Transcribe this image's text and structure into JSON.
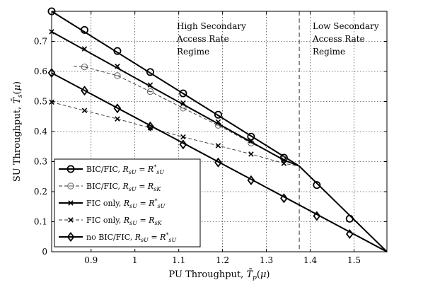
{
  "chart_data": {
    "type": "line",
    "xlabel": "PU Throughput, T̄p(μ)",
    "ylabel": "SU Throughput, T̄s(μ)",
    "xlim": [
      0.81,
      1.575
    ],
    "ylim": [
      0,
      0.8
    ],
    "grid": true,
    "x_ticks": [
      "0.9",
      "1",
      "1.1",
      "1.2",
      "1.3",
      "1.4",
      "1.5"
    ],
    "x_tick_values": [
      0.9,
      1.0,
      1.1,
      1.2,
      1.3,
      1.4,
      1.5
    ],
    "y_ticks": [
      "0",
      "0.1",
      "0.2",
      "0.3",
      "0.4",
      "0.5",
      "0.6",
      "0.7"
    ],
    "y_tick_values": [
      0,
      0.1,
      0.2,
      0.3,
      0.4,
      0.5,
      0.6,
      0.7
    ],
    "legend_position": "lower-left",
    "regime_divider_x": 1.375,
    "annotations": [
      {
        "lines": [
          "High Secondary",
          "Access Rate",
          "Regime"
        ]
      },
      {
        "lines": [
          "Low Secondary",
          "Access Rate",
          "Regime"
        ]
      }
    ],
    "series": [
      {
        "name": "BIC/FIC, RsU = R*sU",
        "marker": "circle",
        "line": "solid",
        "weight": "thick",
        "x": [
          0.81,
          1.375,
          1.575
        ],
        "y": [
          0.8,
          0.285,
          0.0
        ],
        "marker_x": [
          0.81,
          0.885,
          0.96,
          1.035,
          1.11,
          1.19,
          1.265,
          1.34,
          1.415,
          1.49
        ],
        "marker_y": [
          0.8,
          0.738,
          0.668,
          0.598,
          0.527,
          0.456,
          0.383,
          0.313,
          0.222,
          0.11
        ]
      },
      {
        "name": "BIC/FIC, RsU = RsK",
        "marker": "circle-dash",
        "line": "dashed",
        "weight": "thin",
        "x": [
          0.86,
          0.885,
          0.96,
          1.035,
          1.11,
          1.19,
          1.265,
          1.34
        ],
        "y": [
          0.618,
          0.615,
          0.586,
          0.533,
          0.478,
          0.421,
          0.362,
          0.308
        ],
        "marker_x": [
          0.885,
          0.96,
          1.035,
          1.11,
          1.19,
          1.265,
          1.34
        ],
        "marker_y": [
          0.615,
          0.586,
          0.533,
          0.478,
          0.421,
          0.362,
          0.308
        ]
      },
      {
        "name": "FIC only, RsU = R*sU",
        "marker": "x",
        "line": "solid",
        "weight": "thick",
        "x": [
          0.81,
          1.34,
          1.375
        ],
        "y": [
          0.732,
          0.305,
          0.285
        ],
        "marker_x": [
          0.81,
          0.885,
          0.96,
          1.035,
          1.11,
          1.19,
          1.265,
          1.34
        ],
        "marker_y": [
          0.732,
          0.675,
          0.617,
          0.555,
          0.495,
          0.432,
          0.37,
          0.305
        ]
      },
      {
        "name": "FIC only, RsU = RsK",
        "marker": "x",
        "line": "dashed",
        "weight": "thin",
        "x": [
          0.81,
          0.885,
          0.96,
          1.035,
          1.11,
          1.19,
          1.265,
          1.34,
          1.375
        ],
        "y": [
          0.498,
          0.47,
          0.442,
          0.412,
          0.382,
          0.353,
          0.325,
          0.294,
          0.285
        ],
        "marker_x": [
          0.81,
          0.885,
          0.96,
          1.035,
          1.11,
          1.19,
          1.265,
          1.34
        ],
        "marker_y": [
          0.498,
          0.47,
          0.442,
          0.412,
          0.382,
          0.353,
          0.325,
          0.294
        ]
      },
      {
        "name": "no BIC/FIC, RsU = R*sU",
        "marker": "diamond",
        "line": "solid",
        "weight": "thick",
        "x": [
          0.81,
          1.575
        ],
        "y": [
          0.595,
          0.0
        ],
        "marker_x": [
          0.81,
          0.885,
          0.96,
          1.035,
          1.11,
          1.19,
          1.265,
          1.34,
          1.415,
          1.49
        ],
        "marker_y": [
          0.595,
          0.536,
          0.477,
          0.417,
          0.357,
          0.297,
          0.238,
          0.178,
          0.119,
          0.059
        ]
      }
    ]
  },
  "legend": [
    {
      "prefix": "BIC/FIC, ",
      "sub_r": "sU",
      "rel": " = ",
      "rhs_sym": "R",
      "rhs_star": "*",
      "rhs_sub": "sU"
    },
    {
      "prefix": "BIC/FIC, ",
      "sub_r": "sU",
      "rel": " = ",
      "rhs_sym": "R",
      "rhs_star": "",
      "rhs_sub": "sK"
    },
    {
      "prefix": "FIC only, ",
      "sub_r": "sU",
      "rel": " = ",
      "rhs_sym": "R",
      "rhs_star": "*",
      "rhs_sub": "sU"
    },
    {
      "prefix": "FIC only, ",
      "sub_r": "sU",
      "rel": " = ",
      "rhs_sym": "R",
      "rhs_star": "",
      "rhs_sub": "sK"
    },
    {
      "prefix": "no BIC/FIC, ",
      "sub_r": "sU",
      "rel": " = ",
      "rhs_sym": "R",
      "rhs_star": "*",
      "rhs_sub": "sU"
    }
  ]
}
